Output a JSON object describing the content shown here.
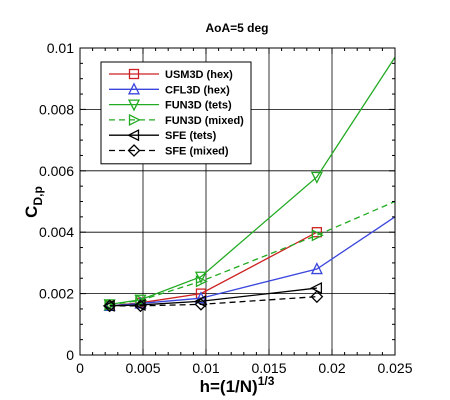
{
  "chart_data": {
    "type": "line",
    "title": "AoA=5 deg",
    "xlabel": {
      "base": "h=(1/N)",
      "sup": "1/3"
    },
    "ylabel": {
      "base": "C",
      "sub": "D,p"
    },
    "xlim": [
      0,
      0.025
    ],
    "ylim": [
      0,
      0.01
    ],
    "xticks": [
      "0",
      "0.005",
      "0.01",
      "0.015",
      "0.02",
      "0.025"
    ],
    "yticks": [
      "0",
      "0.002",
      "0.004",
      "0.006",
      "0.008",
      "0.01"
    ],
    "grid": true,
    "legend_position": "top-left",
    "series": [
      {
        "name": "USM3D (hex)",
        "color": "#cc2222",
        "dash": "solid",
        "marker": "square",
        "x": [
          0.00235,
          0.0048,
          0.0096,
          0.0188
        ],
        "y": [
          0.0016,
          0.0017,
          0.002,
          0.004
        ]
      },
      {
        "name": "CFL3D (hex)",
        "color": "#3a46dd",
        "dash": "solid",
        "marker": "triangle-up",
        "x": [
          0.00235,
          0.0048,
          0.0096,
          0.0188,
          0.025
        ],
        "y": [
          0.0016,
          0.00168,
          0.00185,
          0.0028,
          0.0045
        ]
      },
      {
        "name": "FUN3D (tets)",
        "color": "#22aa22",
        "dash": "solid",
        "marker": "triangle-down",
        "x": [
          0.00235,
          0.0048,
          0.0096,
          0.0188,
          0.025
        ],
        "y": [
          0.00165,
          0.0018,
          0.00255,
          0.0058,
          0.0097
        ]
      },
      {
        "name": "FUN3D (mixed)",
        "color": "#22aa22",
        "dash": "dashed",
        "marker": "triangle-right",
        "x": [
          0.00235,
          0.0048,
          0.0096,
          0.0188,
          0.025
        ],
        "y": [
          0.00163,
          0.00178,
          0.0024,
          0.0039,
          0.005
        ]
      },
      {
        "name": "SFE (tets)",
        "color": "#000000",
        "dash": "solid",
        "marker": "triangle-left",
        "x": [
          0.00235,
          0.0048,
          0.0096,
          0.0188
        ],
        "y": [
          0.0016,
          0.00163,
          0.00175,
          0.00218
        ]
      },
      {
        "name": "SFE (mixed)",
        "color": "#000000",
        "dash": "dashed",
        "marker": "diamond",
        "x": [
          0.00235,
          0.0048,
          0.0096,
          0.0188
        ],
        "y": [
          0.0016,
          0.0016,
          0.00165,
          0.0019
        ]
      }
    ]
  }
}
